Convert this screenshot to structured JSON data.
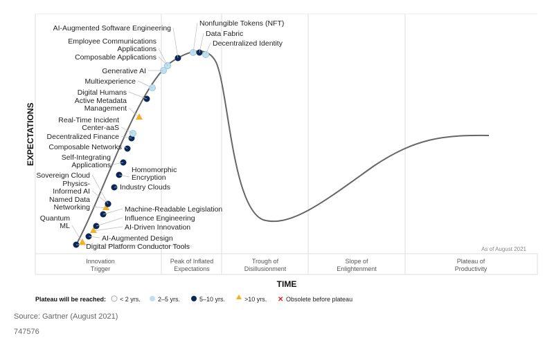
{
  "y_axis_label": "EXPECTATIONS",
  "x_axis_label": "TIME",
  "as_of": "As of August 2021",
  "phases": [
    [
      "Innovation",
      "Trigger"
    ],
    [
      "Peak of Inflated",
      "Expectations"
    ],
    [
      "Trough of",
      "Disillusionment"
    ],
    [
      "Slope of",
      "Enlightenment"
    ],
    [
      "Plateau of",
      "Productivity"
    ]
  ],
  "legend": {
    "title": "Plateau will be reached:",
    "items": [
      {
        "label": "< 2 yrs.",
        "marker": "circle",
        "color": "#ffffff"
      },
      {
        "label": "2–5 yrs.",
        "marker": "circle",
        "color": "#bfe0ef"
      },
      {
        "label": "5–10 yrs.",
        "marker": "circle",
        "color": "#0b2756"
      },
      {
        "label": ">10 yrs.",
        "marker": "triangle",
        "color": "#f2b21c"
      },
      {
        "label": "Obsolete before plateau",
        "marker": "x",
        "color": "#e02020"
      }
    ]
  },
  "technologies": [
    {
      "name": "Digital Platform Conductor Tools",
      "plateau": "5–10 yrs."
    },
    {
      "name": "Quantum ML",
      "plateau": ">10 yrs."
    },
    {
      "name": "AI-Augmented Design",
      "plateau": "5–10 yrs."
    },
    {
      "name": "AI-Driven Innovation",
      "plateau": ">10 yrs."
    },
    {
      "name": "Influence Engineering",
      "plateau": "5–10 yrs."
    },
    {
      "name": "Machine-Readable Legislation",
      "plateau": "5–10 yrs."
    },
    {
      "name": "Named Data Networking",
      "plateau": ">10 yrs."
    },
    {
      "name": "Physics-Informed AI",
      "plateau": "5–10 yrs."
    },
    {
      "name": "Sovereign Cloud",
      "plateau": "5–10 yrs."
    },
    {
      "name": "Industry Clouds",
      "plateau": "5–10 yrs."
    },
    {
      "name": "Homomorphic Encryption",
      "plateau": "5–10 yrs."
    },
    {
      "name": "Self-Integrating Applications",
      "plateau": "5–10 yrs."
    },
    {
      "name": "Composable Networks",
      "plateau": "5–10 yrs."
    },
    {
      "name": "Decentralized Finance",
      "plateau": "5–10 yrs."
    },
    {
      "name": "Real-Time Incident Center-aaS",
      "plateau": "2–5 yrs."
    },
    {
      "name": "Active Metadata Management",
      "plateau": ">10 yrs."
    },
    {
      "name": "Digital Humans",
      "plateau": "5–10 yrs."
    },
    {
      "name": "Multiexperience",
      "plateau": "2–5 yrs."
    },
    {
      "name": "Generative AI",
      "plateau": "2–5 yrs."
    },
    {
      "name": "Composable Applications",
      "plateau": "2–5 yrs."
    },
    {
      "name": "Employee Communications Applications",
      "plateau": "2–5 yrs."
    },
    {
      "name": "AI-Augmented Software Engineering",
      "plateau": "5–10 yrs."
    },
    {
      "name": "Nonfungible Tokens (NFT)",
      "plateau": "2–5 yrs."
    },
    {
      "name": "Data Fabric",
      "plateau": "5–10 yrs."
    },
    {
      "name": "Decentralized Identity",
      "plateau": "2–5 yrs."
    }
  ],
  "source": "Source: Gartner (August 2021)",
  "id": "747576"
}
